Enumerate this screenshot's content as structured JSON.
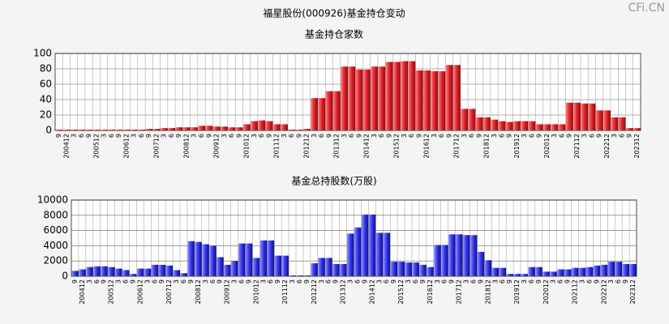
{
  "page_title": "福星股份(000926)基金持仓变动",
  "watermark": "CFi.CN",
  "chart_data": [
    {
      "type": "bar",
      "title": "基金持仓家数",
      "color": "#e0222a",
      "categories": [
        "9",
        "200412",
        "3",
        "6",
        "9",
        "200512",
        "3",
        "6",
        "9",
        "200612",
        "3",
        "6",
        "9",
        "200712",
        "3",
        "6",
        "9",
        "200812",
        "3",
        "6",
        "9",
        "200912",
        "3",
        "6",
        "9",
        "201012",
        "3",
        "6",
        "9",
        "201112",
        "3",
        "6",
        "9",
        "201212",
        "3",
        "6",
        "9",
        "201312",
        "3",
        "6",
        "9",
        "201412",
        "3",
        "6",
        "9",
        "201512",
        "3",
        "6",
        "9",
        "201612",
        "3",
        "6",
        "9",
        "201712",
        "3",
        "6",
        "9",
        "201812",
        "3",
        "6",
        "9",
        "201912",
        "3",
        "6",
        "9",
        "202012",
        "3",
        "6",
        "9",
        "202112",
        "3",
        "6",
        "9",
        "202212",
        "3",
        "6",
        "9",
        "202312"
      ],
      "values": [
        1,
        1,
        1,
        1,
        1,
        1,
        1,
        1,
        1,
        1,
        1,
        1,
        2,
        2,
        3,
        3,
        4,
        4,
        4,
        6,
        6,
        5,
        5,
        4,
        4,
        8,
        12,
        13,
        12,
        8,
        8,
        1,
        1,
        2,
        42,
        42,
        51,
        51,
        83,
        83,
        79,
        79,
        83,
        83,
        89,
        89,
        90,
        90,
        78,
        78,
        77,
        77,
        85,
        85,
        28,
        28,
        17,
        17,
        14,
        12,
        11,
        12,
        12,
        12,
        8,
        8,
        8,
        8,
        36,
        36,
        35,
        35,
        26,
        26,
        17,
        17,
        3,
        3
      ],
      "ylim": [
        0,
        100
      ],
      "yticks": [
        0,
        20,
        40,
        60,
        80,
        100
      ],
      "grid": true
    },
    {
      "type": "bar",
      "title": "基金总持股数(万股)",
      "color": "#3333ee",
      "categories": [
        "9",
        "200412",
        "3",
        "6",
        "9",
        "200512",
        "3",
        "6",
        "9",
        "200612",
        "3",
        "6",
        "9",
        "200712",
        "3",
        "6",
        "9",
        "200812",
        "3",
        "6",
        "9",
        "200912",
        "3",
        "6",
        "9",
        "201012",
        "3",
        "6",
        "9",
        "201112",
        "3",
        "6",
        "9",
        "201212",
        "3",
        "6",
        "9",
        "201312",
        "3",
        "6",
        "9",
        "201412",
        "3",
        "6",
        "9",
        "201512",
        "3",
        "6",
        "9",
        "201612",
        "3",
        "6",
        "9",
        "201712",
        "3",
        "6",
        "9",
        "201812",
        "3",
        "6",
        "9",
        "201912",
        "3",
        "6",
        "9",
        "202012",
        "3",
        "6",
        "9",
        "202112",
        "3",
        "6",
        "9",
        "202212",
        "3",
        "6",
        "9",
        "202312"
      ],
      "values": [
        700,
        900,
        1200,
        1300,
        1300,
        1200,
        1000,
        800,
        300,
        1000,
        1000,
        1500,
        1500,
        1400,
        800,
        400,
        4600,
        4500,
        4200,
        4000,
        2500,
        1500,
        2000,
        4300,
        4300,
        2400,
        4700,
        4700,
        2700,
        2700,
        100,
        100,
        100,
        1700,
        2400,
        2400,
        1600,
        1600,
        5600,
        6400,
        8100,
        8100,
        5700,
        5700,
        1900,
        1900,
        1800,
        1800,
        1500,
        1200,
        4100,
        4100,
        5500,
        5500,
        5400,
        5400,
        3200,
        2100,
        1100,
        1100,
        300,
        300,
        300,
        1200,
        1200,
        600,
        600,
        900,
        900,
        1100,
        1100,
        1200,
        1400,
        1500,
        1900,
        1900,
        1600,
        1600
      ],
      "ylim": [
        0,
        10000
      ],
      "yticks": [
        0,
        2000,
        4000,
        6000,
        8000,
        10000
      ],
      "grid": true
    }
  ]
}
